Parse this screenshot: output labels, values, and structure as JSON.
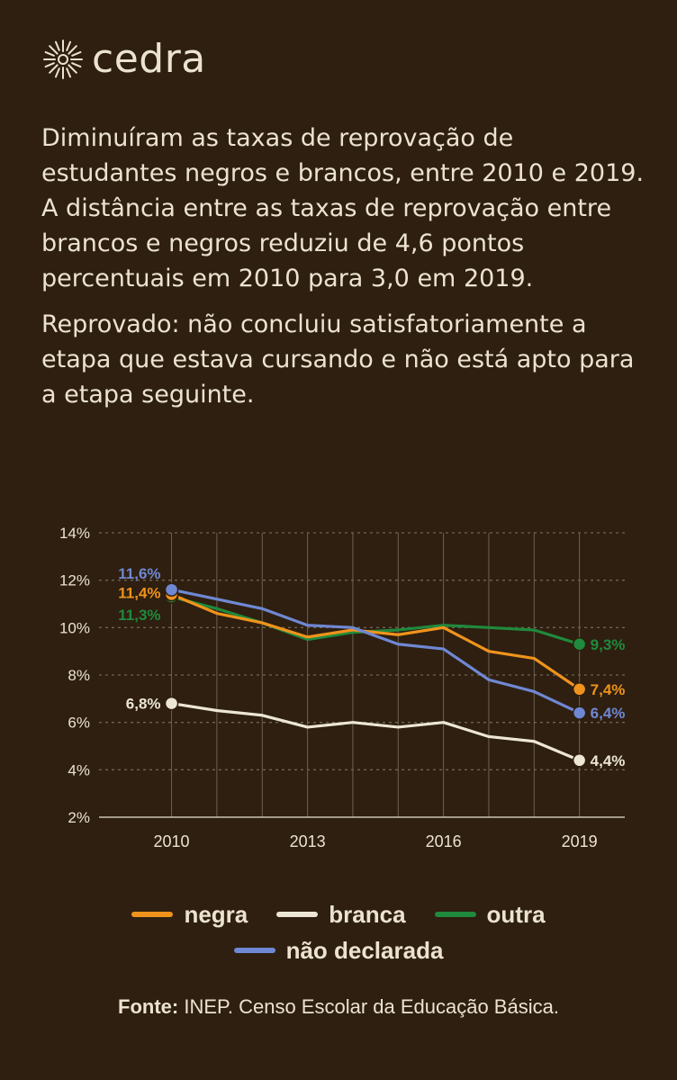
{
  "brand": {
    "name": "cedra"
  },
  "intro": {
    "paragraph1": "Diminuíram as taxas de reprovação de estudantes negros e brancos, entre 2010 e 2019. A distância entre as taxas de reprovação entre brancos e negros reduziu de 4,6 pontos percentuais em 2010 para 3,0 em 2019.",
    "paragraph2": "Reprovado: não concluiu satisfatoriamente a etapa que estava cursando e não está apto para a etapa seguinte."
  },
  "chart_data": {
    "type": "line",
    "x": [
      2010,
      2011,
      2012,
      2013,
      2014,
      2015,
      2016,
      2017,
      2018,
      2019
    ],
    "x_ticks": [
      2010,
      2013,
      2016,
      2019
    ],
    "y_ticks": [
      "2%",
      "4%",
      "6%",
      "8%",
      "10%",
      "12%",
      "14%"
    ],
    "ylim": [
      2,
      14
    ],
    "xlim": [
      2008.4,
      2020.0
    ],
    "grid": true,
    "series": [
      {
        "name": "negra",
        "color": "#f0931c",
        "values": [
          11.4,
          10.6,
          10.2,
          9.6,
          9.9,
          9.7,
          10.0,
          9.0,
          8.7,
          7.4
        ],
        "start_label": "11,4%",
        "end_label": "7,4%"
      },
      {
        "name": "branca",
        "color": "#ede6d6",
        "values": [
          6.8,
          6.5,
          6.3,
          5.8,
          6.0,
          5.8,
          6.0,
          5.4,
          5.2,
          4.4
        ],
        "start_label": "6,8%",
        "end_label": "4,4%"
      },
      {
        "name": "outra",
        "color": "#1f8a3c",
        "values": [
          11.3,
          10.8,
          10.2,
          9.5,
          9.8,
          9.9,
          10.1,
          10.0,
          9.9,
          9.3
        ],
        "start_label": "11,3%",
        "end_label": "9,3%"
      },
      {
        "name": "não declarada",
        "color": "#6f88d4",
        "values": [
          11.6,
          11.2,
          10.8,
          10.1,
          10.0,
          9.3,
          9.1,
          7.8,
          7.3,
          6.4
        ],
        "start_label": "11,6%",
        "end_label": "6,4%"
      }
    ]
  },
  "legend": {
    "row1": [
      "negra",
      "branca",
      "outra"
    ],
    "row2": [
      "não declarada"
    ]
  },
  "source": {
    "label": "Fonte:",
    "text": " INEP. Censo Escolar da Educação Básica."
  },
  "colors": {
    "background": "#2e1f10",
    "text": "#ece3cf",
    "grid": "#6e6353"
  }
}
